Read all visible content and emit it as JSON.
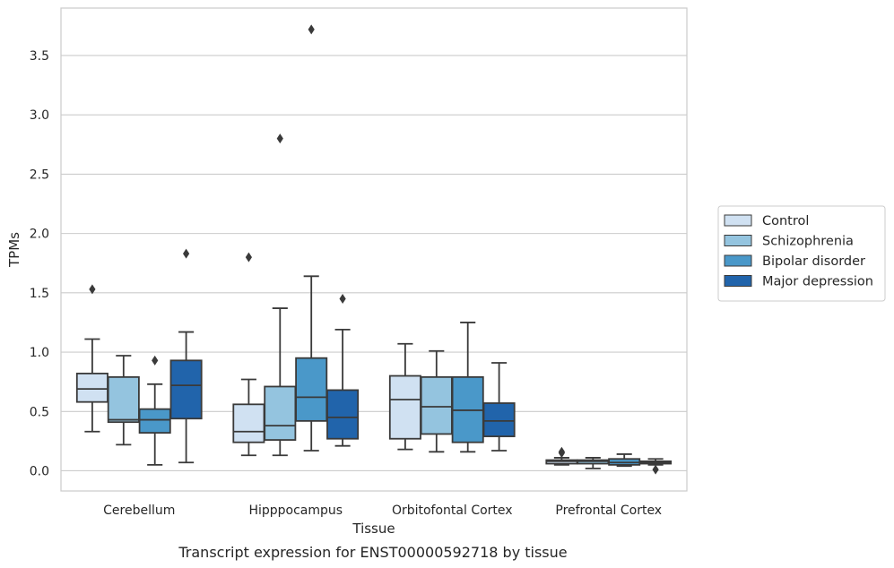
{
  "chart_data": {
    "type": "box",
    "xlabel": "Tissue",
    "ylabel": "TPMs",
    "caption": "Transcript expression for ENST00000592718 by tissue",
    "ylim": [
      -0.17,
      3.9
    ],
    "yticks": [
      "0.0",
      "0.5",
      "1.0",
      "1.5",
      "2.0",
      "2.5",
      "3.0",
      "3.5"
    ],
    "ytick_values": [
      0.0,
      0.5,
      1.0,
      1.5,
      2.0,
      2.5,
      3.0,
      3.5
    ],
    "grid": "horizontal",
    "legend_position": "outside-right",
    "categories": [
      "Cerebellum",
      "Hipppocampus",
      "Orbitofontal Cortex",
      "Prefrontal Cortex"
    ],
    "series": [
      {
        "name": "Control",
        "color": "#d0e1f2",
        "boxes": [
          {
            "whislo": 0.33,
            "q1": 0.58,
            "med": 0.69,
            "q3": 0.82,
            "whishi": 1.11,
            "fliers": [
              1.53
            ]
          },
          {
            "whislo": 0.13,
            "q1": 0.24,
            "med": 0.33,
            "q3": 0.56,
            "whishi": 0.77,
            "fliers": [
              1.8
            ]
          },
          {
            "whislo": 0.18,
            "q1": 0.27,
            "med": 0.6,
            "q3": 0.8,
            "whishi": 1.07,
            "fliers": []
          },
          {
            "whislo": 0.05,
            "q1": 0.06,
            "med": 0.08,
            "q3": 0.09,
            "whishi": 0.11,
            "fliers": [
              0.15,
              0.16
            ]
          }
        ]
      },
      {
        "name": "Schizophrenia",
        "color": "#94c4df",
        "boxes": [
          {
            "whislo": 0.22,
            "q1": 0.41,
            "med": 0.43,
            "q3": 0.79,
            "whishi": 0.97,
            "fliers": []
          },
          {
            "whislo": 0.13,
            "q1": 0.26,
            "med": 0.38,
            "q3": 0.71,
            "whishi": 1.37,
            "fliers": [
              2.8
            ]
          },
          {
            "whislo": 0.16,
            "q1": 0.31,
            "med": 0.54,
            "q3": 0.79,
            "whishi": 1.01,
            "fliers": []
          },
          {
            "whislo": 0.02,
            "q1": 0.06,
            "med": 0.08,
            "q3": 0.09,
            "whishi": 0.11,
            "fliers": []
          }
        ]
      },
      {
        "name": "Bipolar disorder",
        "color": "#4a98c9",
        "boxes": [
          {
            "whislo": 0.05,
            "q1": 0.32,
            "med": 0.43,
            "q3": 0.52,
            "whishi": 0.73,
            "fliers": [
              0.93
            ]
          },
          {
            "whislo": 0.17,
            "q1": 0.42,
            "med": 0.62,
            "q3": 0.95,
            "whishi": 1.64,
            "fliers": [
              3.72
            ]
          },
          {
            "whislo": 0.16,
            "q1": 0.24,
            "med": 0.51,
            "q3": 0.79,
            "whishi": 1.25,
            "fliers": []
          },
          {
            "whislo": 0.04,
            "q1": 0.05,
            "med": 0.07,
            "q3": 0.1,
            "whishi": 0.14,
            "fliers": []
          }
        ]
      },
      {
        "name": "Major depression",
        "color": "#2164ab",
        "boxes": [
          {
            "whislo": 0.07,
            "q1": 0.44,
            "med": 0.72,
            "q3": 0.93,
            "whishi": 1.17,
            "fliers": [
              1.83
            ]
          },
          {
            "whislo": 0.21,
            "q1": 0.27,
            "med": 0.45,
            "q3": 0.68,
            "whishi": 1.19,
            "fliers": [
              1.45
            ]
          },
          {
            "whislo": 0.17,
            "q1": 0.29,
            "med": 0.42,
            "q3": 0.57,
            "whishi": 0.91,
            "fliers": []
          },
          {
            "whislo": 0.05,
            "q1": 0.06,
            "med": 0.07,
            "q3": 0.08,
            "whishi": 0.1,
            "fliers": [
              0.01
            ]
          }
        ]
      }
    ]
  }
}
